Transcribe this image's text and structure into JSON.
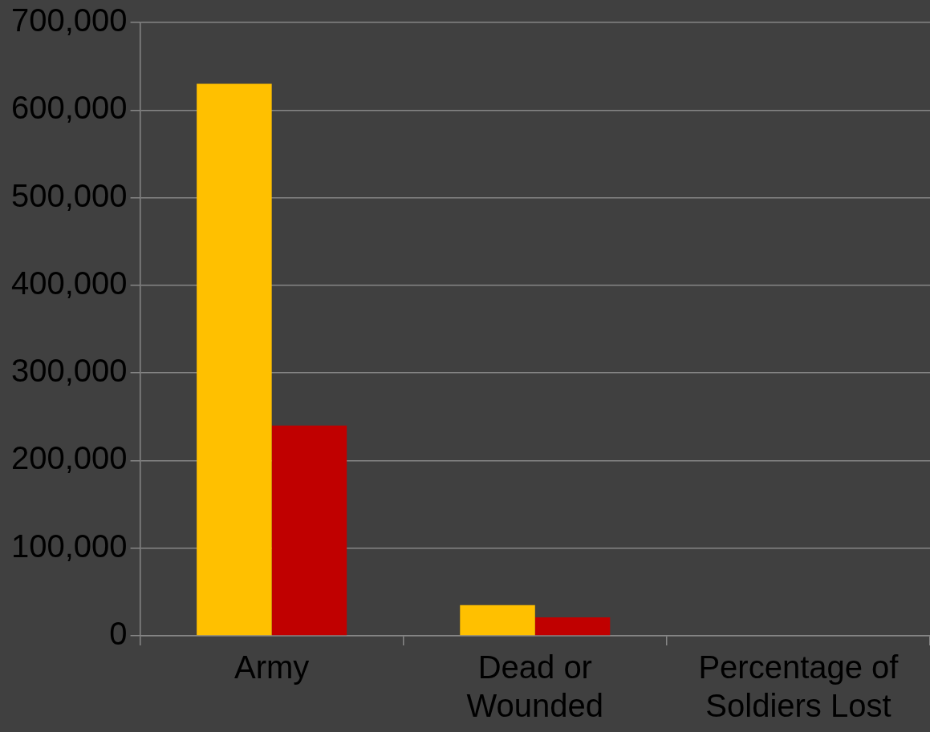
{
  "chart_data": {
    "type": "bar",
    "categories": [
      "Army",
      "Dead or Wounded",
      "Percentage of Soldiers Lost"
    ],
    "series": [
      {
        "color": "#ffc000",
        "values": [
          630000,
          35000,
          null
        ]
      },
      {
        "color": "#c00000",
        "values": [
          240000,
          21000,
          null
        ]
      }
    ],
    "ylim": [
      0,
      700000
    ],
    "yticks": [
      0,
      {
        "value": 100000,
        "label": "100,000"
      },
      {
        "value": 200000,
        "label": "200,000"
      },
      {
        "value": 300000,
        "label": "300,000"
      },
      {
        "value": 400000,
        "label": "400,000"
      },
      {
        "value": 500000,
        "label": "500,000"
      },
      {
        "value": 600000,
        "label": "600,000"
      },
      {
        "value": 700000,
        "label": "700,000"
      }
    ],
    "grid": "y",
    "legend": false
  }
}
